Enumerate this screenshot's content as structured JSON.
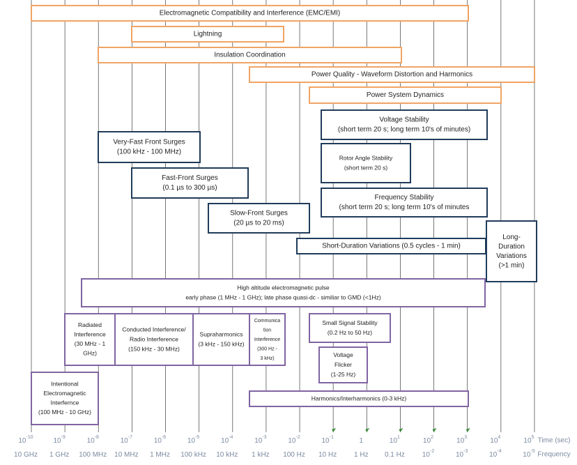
{
  "boxes": [
    {
      "lines": [
        "Electromagnetic Compatibility and Interference (EMC/EMI)"
      ]
    },
    {
      "lines": [
        "Lightning"
      ]
    },
    {
      "lines": [
        "Insulation Coordination"
      ]
    },
    {
      "lines": [
        "Power Quality - Waveform Distortion and Harmonics"
      ]
    },
    {
      "lines": [
        "Power System Dynamics"
      ]
    },
    {
      "lines": [
        "Voltage Stability",
        "(short term 20 s; long term 10's of minutes)"
      ]
    },
    {
      "lines": [
        "Very-Fast Front Surges",
        "(100 kHz - 100 MHz)"
      ]
    },
    {
      "lines": [
        "Rotor Angle Stability",
        "(short term 20 s)"
      ]
    },
    {
      "lines": [
        "Fast-Front Surges",
        "(0.1 µs to 300 µs)"
      ]
    },
    {
      "lines": [
        "Frequency Stability",
        "(short term 20 s; long term 10's of minutes"
      ]
    },
    {
      "lines": [
        "Slow-Front Surges",
        "(20 µs to 20 ms)"
      ]
    },
    {
      "lines": [
        "Short-Duration Variations (0.5 cycles - 1 min)"
      ]
    },
    {
      "lines": [
        "Long-",
        "Duration",
        "Variations",
        "(>1 min)"
      ]
    },
    {
      "lines": [
        "High altitude electromagnetic pulse",
        "early phase (1 MHz - 1 GHz); late phase quasi-dc - similiar to GMD (<1Hz)"
      ]
    },
    {
      "lines": [
        "Radiated",
        "Interference",
        "(30 MHz - 1",
        "GHz)"
      ]
    },
    {
      "lines": [
        "Conducted Interference/",
        "Radio Interference",
        "(150 kHz - 30 MHz)"
      ]
    },
    {
      "lines": [
        "Supraharmonics",
        "(3 kHz - 150 kHz)"
      ]
    },
    {
      "lines": [
        "Communica",
        "tion",
        "Interference",
        "(300 Hz -",
        "3 kHz)"
      ]
    },
    {
      "lines": [
        "Small Signal Stability",
        "(0.2 Hz to 50 Hz)"
      ]
    },
    {
      "lines": [
        "Voltage",
        "Flicker",
        "(1-25 Hz)"
      ]
    },
    {
      "lines": [
        "Intentional",
        "Electromagnetic",
        "Interfernce",
        "(100 MHz - 10 GHz)"
      ]
    },
    {
      "lines": [
        "Harmonics/Interharmonics (0-3 kHz)"
      ]
    }
  ],
  "axis": {
    "time_ticks": [
      {
        "base": "10",
        "exp": "-10"
      },
      {
        "base": "10",
        "exp": "-9"
      },
      {
        "base": "10",
        "exp": "-8"
      },
      {
        "base": "10",
        "exp": "-7"
      },
      {
        "base": "10",
        "exp": "-6"
      },
      {
        "base": "10",
        "exp": "-5"
      },
      {
        "base": "10",
        "exp": "-4"
      },
      {
        "base": "10",
        "exp": "-3"
      },
      {
        "base": "10",
        "exp": "-2"
      },
      {
        "base": "10",
        "exp": "-1"
      },
      {
        "base": "1"
      },
      {
        "base": "10",
        "exp": "1"
      },
      {
        "base": "10",
        "exp": "2"
      },
      {
        "base": "10",
        "exp": "3"
      },
      {
        "base": "10",
        "exp": "4"
      },
      {
        "base": "10",
        "exp": "5"
      }
    ],
    "time_label": "Time (sec)",
    "frequency_ticks": [
      {
        "base": "10 GHz"
      },
      {
        "base": "1 GHz"
      },
      {
        "base": "100 MHz"
      },
      {
        "base": "10 MHz"
      },
      {
        "base": "1 MHz"
      },
      {
        "base": "100 kHz"
      },
      {
        "base": "10 kHz"
      },
      {
        "base": "1 kHz"
      },
      {
        "base": "100 Hz"
      },
      {
        "base": "10 Hz"
      },
      {
        "base": "1 Hz"
      },
      {
        "base": "0.1 Hz"
      },
      {
        "base": "10",
        "exp": "-2"
      },
      {
        "base": "10",
        "exp": "-3"
      },
      {
        "base": "10",
        "exp": "-4"
      },
      {
        "base": "10",
        "exp": "-5"
      }
    ],
    "frequency_label": "Frequency"
  }
}
